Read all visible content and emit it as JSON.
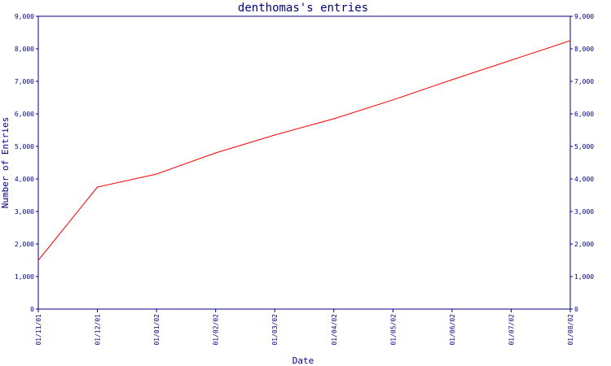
{
  "chart_data": {
    "type": "line",
    "title": "denthomas's entries",
    "xlabel": "Date",
    "ylabel": "Number of Entries",
    "ylim": [
      0,
      9000
    ],
    "y_ticks": [
      "0",
      "1,000",
      "2,000",
      "3,000",
      "4,000",
      "5,000",
      "6,000",
      "7,000",
      "8,000",
      "9,000"
    ],
    "right_y_ticks": [
      "0",
      "1,000",
      "2,000",
      "3,000",
      "4,000",
      "5,000",
      "6,000",
      "7,000",
      "8,000",
      "9,000"
    ],
    "x_ticks": [
      "01/11/01",
      "01/12/01",
      "01/01/02",
      "01/02/02",
      "01/03/02",
      "01/04/02",
      "01/05/02",
      "01/06/02",
      "01/07/02",
      "01/08/02"
    ],
    "grid": false,
    "colors": {
      "axis": "#000080",
      "line": "#ff0000"
    },
    "series": [
      {
        "x": [
          "01/11/01",
          "01/12/01",
          "01/01/02",
          "01/02/02",
          "01/03/02",
          "01/04/02",
          "01/05/02",
          "01/06/02",
          "01/07/02",
          "01/08/02"
        ],
        "y": [
          1500,
          3750,
          4150,
          4800,
          5350,
          5850,
          6430,
          7050,
          7650,
          8250
        ]
      }
    ]
  }
}
